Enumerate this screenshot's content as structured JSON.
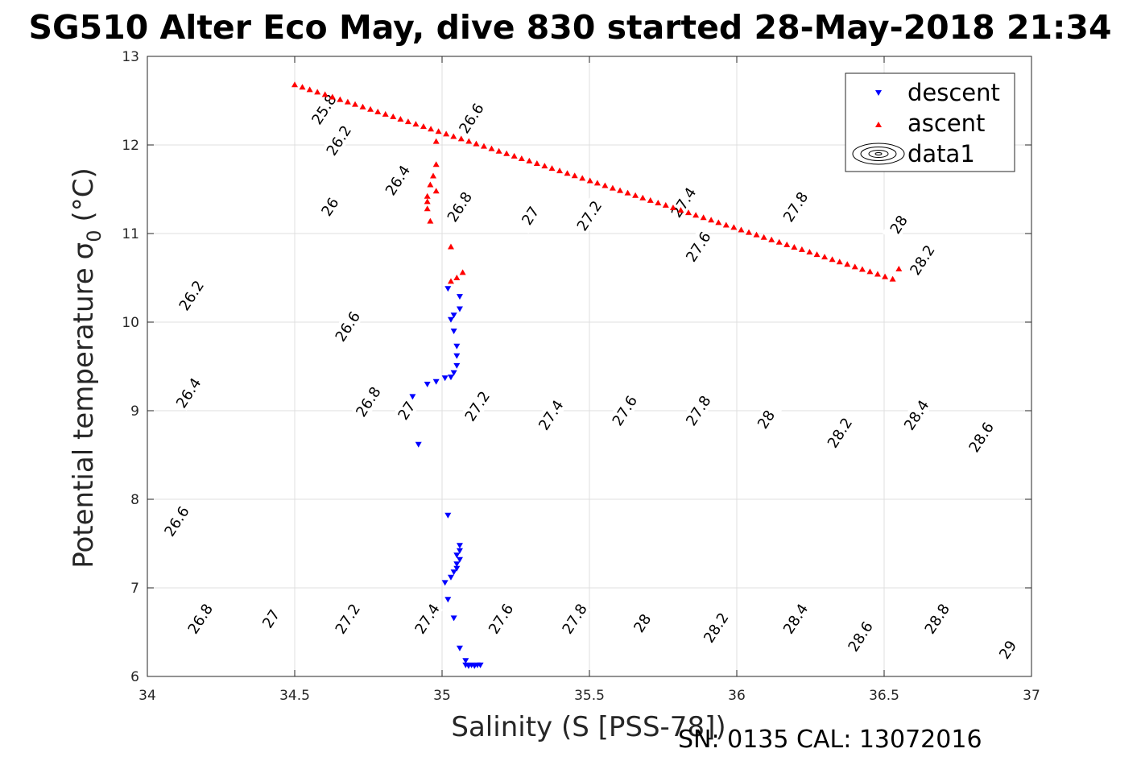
{
  "title": "SG510 Alter Eco May, dive 830 started 28-May-2018 21:34",
  "footer": "SN: 0135  CAL: 13072016",
  "chart_data": {
    "type": "scatter",
    "xlabel": "Salinity (S [PSS-78])",
    "ylabel": "Potential temperature",
    "ylabel_symbol": "σ",
    "ylabel_subscript": "0",
    "ylabel_unit": "(°C)",
    "xlim": [
      34,
      37
    ],
    "ylim": [
      6,
      13
    ],
    "xticks": [
      "34",
      "34.5",
      "35",
      "35.5",
      "36",
      "36.5",
      "37"
    ],
    "yticks": [
      "6",
      "7",
      "8",
      "9",
      "10",
      "11",
      "12",
      "13"
    ],
    "grid": true,
    "legend_position": "top-right",
    "colors": {
      "descent": "#0000ff",
      "ascent": "#ff0000",
      "contour": "#000000",
      "grid": "#dfdfdf",
      "axis": "#262626"
    },
    "series": [
      {
        "name": "descent",
        "marker": "triangle-down",
        "points": [
          [
            35.02,
            10.38
          ],
          [
            35.06,
            10.29
          ],
          [
            35.06,
            10.15
          ],
          [
            35.04,
            10.08
          ],
          [
            35.03,
            10.03
          ],
          [
            35.04,
            9.9
          ],
          [
            35.05,
            9.73
          ],
          [
            35.05,
            9.62
          ],
          [
            35.05,
            9.51
          ],
          [
            35.04,
            9.43
          ],
          [
            35.03,
            9.38
          ],
          [
            35.01,
            9.37
          ],
          [
            34.98,
            9.33
          ],
          [
            34.95,
            9.3
          ],
          [
            34.9,
            9.16
          ],
          [
            34.92,
            8.62
          ],
          [
            35.02,
            7.82
          ],
          [
            35.06,
            7.48
          ],
          [
            35.06,
            7.42
          ],
          [
            35.05,
            7.37
          ],
          [
            35.06,
            7.32
          ],
          [
            35.05,
            7.27
          ],
          [
            35.05,
            7.22
          ],
          [
            35.04,
            7.18
          ],
          [
            35.03,
            7.12
          ],
          [
            35.01,
            7.06
          ],
          [
            35.02,
            6.87
          ],
          [
            35.04,
            6.66
          ],
          [
            35.06,
            6.32
          ],
          [
            35.08,
            6.18
          ],
          [
            35.08,
            6.13
          ],
          [
            35.09,
            6.12
          ],
          [
            35.1,
            6.13
          ],
          [
            35.11,
            6.12
          ],
          [
            35.12,
            6.13
          ],
          [
            35.13,
            6.13
          ]
        ]
      },
      {
        "name": "ascent",
        "marker": "triangle-up",
        "points": [
          [
            34.5,
            12.68
          ],
          [
            34.526,
            12.652
          ],
          [
            34.551,
            12.624
          ],
          [
            34.577,
            12.597
          ],
          [
            34.603,
            12.569
          ],
          [
            34.628,
            12.541
          ],
          [
            34.654,
            12.513
          ],
          [
            34.68,
            12.485
          ],
          [
            34.705,
            12.458
          ],
          [
            34.731,
            12.43
          ],
          [
            34.757,
            12.402
          ],
          [
            34.782,
            12.374
          ],
          [
            34.808,
            12.347
          ],
          [
            34.834,
            12.319
          ],
          [
            34.859,
            12.291
          ],
          [
            34.885,
            12.263
          ],
          [
            34.911,
            12.235
          ],
          [
            34.937,
            12.208
          ],
          [
            34.962,
            12.18
          ],
          [
            34.988,
            12.152
          ],
          [
            35.014,
            12.124
          ],
          [
            35.039,
            12.096
          ],
          [
            35.065,
            12.069
          ],
          [
            35.091,
            12.041
          ],
          [
            35.116,
            12.013
          ],
          [
            35.142,
            11.985
          ],
          [
            35.168,
            11.958
          ],
          [
            35.193,
            11.93
          ],
          [
            35.219,
            11.902
          ],
          [
            35.245,
            11.874
          ],
          [
            35.27,
            11.846
          ],
          [
            35.296,
            11.819
          ],
          [
            35.322,
            11.791
          ],
          [
            35.348,
            11.763
          ],
          [
            35.373,
            11.735
          ],
          [
            35.399,
            11.708
          ],
          [
            35.425,
            11.68
          ],
          [
            35.45,
            11.652
          ],
          [
            35.476,
            11.624
          ],
          [
            35.502,
            11.596
          ],
          [
            35.527,
            11.569
          ],
          [
            35.553,
            11.541
          ],
          [
            35.579,
            11.513
          ],
          [
            35.604,
            11.485
          ],
          [
            35.63,
            11.458
          ],
          [
            35.656,
            11.43
          ],
          [
            35.681,
            11.402
          ],
          [
            35.707,
            11.374
          ],
          [
            35.733,
            11.346
          ],
          [
            35.759,
            11.319
          ],
          [
            35.784,
            11.291
          ],
          [
            35.81,
            11.263
          ],
          [
            35.836,
            11.235
          ],
          [
            35.861,
            11.207
          ],
          [
            35.887,
            11.18
          ],
          [
            35.913,
            11.152
          ],
          [
            35.938,
            11.124
          ],
          [
            35.964,
            11.096
          ],
          [
            35.99,
            11.069
          ],
          [
            36.015,
            11.041
          ],
          [
            36.041,
            11.013
          ],
          [
            36.067,
            10.985
          ],
          [
            36.092,
            10.957
          ],
          [
            36.118,
            10.93
          ],
          [
            36.144,
            10.902
          ],
          [
            36.17,
            10.874
          ],
          [
            36.195,
            10.846
          ],
          [
            36.221,
            10.819
          ],
          [
            36.247,
            10.791
          ],
          [
            36.272,
            10.763
          ],
          [
            36.298,
            10.735
          ],
          [
            36.324,
            10.707
          ],
          [
            36.349,
            10.68
          ],
          [
            36.375,
            10.652
          ],
          [
            36.401,
            10.624
          ],
          [
            36.426,
            10.596
          ],
          [
            36.452,
            10.569
          ],
          [
            36.478,
            10.541
          ],
          [
            36.503,
            10.513
          ],
          [
            36.529,
            10.485
          ],
          [
            36.55,
            10.6
          ],
          [
            34.98,
            12.04
          ],
          [
            34.98,
            11.78
          ],
          [
            34.97,
            11.65
          ],
          [
            34.96,
            11.55
          ],
          [
            34.98,
            11.48
          ],
          [
            34.95,
            11.42
          ],
          [
            34.95,
            11.36
          ],
          [
            34.95,
            11.28
          ],
          [
            34.96,
            11.14
          ],
          [
            35.03,
            10.85
          ],
          [
            35.07,
            10.56
          ],
          [
            35.05,
            10.5
          ],
          [
            35.03,
            10.46
          ]
        ]
      }
    ],
    "contours": {
      "d0": 0.96,
      "db": 0.78,
      "a0": 0.16,
      "ka": 0.009,
      "kb": 0.0006,
      "levels": [
        "25.8",
        "26",
        "26.2",
        "26.4",
        "26.6",
        "26.8",
        "27",
        "27.2",
        "27.4",
        "27.6",
        "27.8",
        "28",
        "28.2",
        "28.4",
        "28.6",
        "28.8",
        "29"
      ],
      "labels": [
        {
          "text": "25.8",
          "s": 34.6,
          "t": 12.4
        },
        {
          "text": "26.2",
          "s": 34.65,
          "t": 12.05
        },
        {
          "text": "26.6",
          "s": 35.1,
          "t": 12.3
        },
        {
          "text": "26",
          "s": 34.62,
          "t": 11.3
        },
        {
          "text": "26.4",
          "s": 34.85,
          "t": 11.6
        },
        {
          "text": "26.8",
          "s": 35.06,
          "t": 11.3
        },
        {
          "text": "27",
          "s": 35.3,
          "t": 11.2
        },
        {
          "text": "27.2",
          "s": 35.5,
          "t": 11.2
        },
        {
          "text": "27.4",
          "s": 35.82,
          "t": 11.35
        },
        {
          "text": "27.6",
          "s": 35.87,
          "t": 10.85
        },
        {
          "text": "27.8",
          "s": 36.2,
          "t": 11.3
        },
        {
          "text": "28",
          "s": 36.55,
          "t": 11.1
        },
        {
          "text": "28.2",
          "s": 36.63,
          "t": 10.7
        },
        {
          "text": "26.2",
          "s": 34.15,
          "t": 10.3
        },
        {
          "text": "26.6",
          "s": 34.68,
          "t": 9.95
        },
        {
          "text": "26.4",
          "s": 34.14,
          "t": 9.2
        },
        {
          "text": "26.8",
          "s": 34.75,
          "t": 9.1
        },
        {
          "text": "27",
          "s": 34.88,
          "t": 9.0
        },
        {
          "text": "27.2",
          "s": 35.12,
          "t": 9.05
        },
        {
          "text": "27.4",
          "s": 35.37,
          "t": 8.95
        },
        {
          "text": "27.6",
          "s": 35.62,
          "t": 9.0
        },
        {
          "text": "27.8",
          "s": 35.87,
          "t": 9.0
        },
        {
          "text": "28",
          "s": 36.1,
          "t": 8.9
        },
        {
          "text": "28.2",
          "s": 36.35,
          "t": 8.75
        },
        {
          "text": "28.4",
          "s": 36.61,
          "t": 8.95
        },
        {
          "text": "28.6",
          "s": 36.83,
          "t": 8.7
        },
        {
          "text": "26.6",
          "s": 34.1,
          "t": 7.75
        },
        {
          "text": "26.8",
          "s": 34.18,
          "t": 6.65
        },
        {
          "text": "27",
          "s": 34.42,
          "t": 6.65
        },
        {
          "text": "27.2",
          "s": 34.68,
          "t": 6.65
        },
        {
          "text": "27.4",
          "s": 34.95,
          "t": 6.65
        },
        {
          "text": "27.6",
          "s": 35.2,
          "t": 6.65
        },
        {
          "text": "27.8",
          "s": 35.45,
          "t": 6.65
        },
        {
          "text": "28",
          "s": 35.68,
          "t": 6.6
        },
        {
          "text": "28.2",
          "s": 35.93,
          "t": 6.55
        },
        {
          "text": "28.4",
          "s": 36.2,
          "t": 6.65
        },
        {
          "text": "28.6",
          "s": 36.42,
          "t": 6.45
        },
        {
          "text": "28.8",
          "s": 36.68,
          "t": 6.65
        },
        {
          "text": "29",
          "s": 36.92,
          "t": 6.3
        }
      ]
    },
    "legend": [
      {
        "label": "descent",
        "marker": "triangle-down"
      },
      {
        "label": "ascent",
        "marker": "triangle-up"
      },
      {
        "label": "data1",
        "marker": "contour"
      }
    ]
  }
}
